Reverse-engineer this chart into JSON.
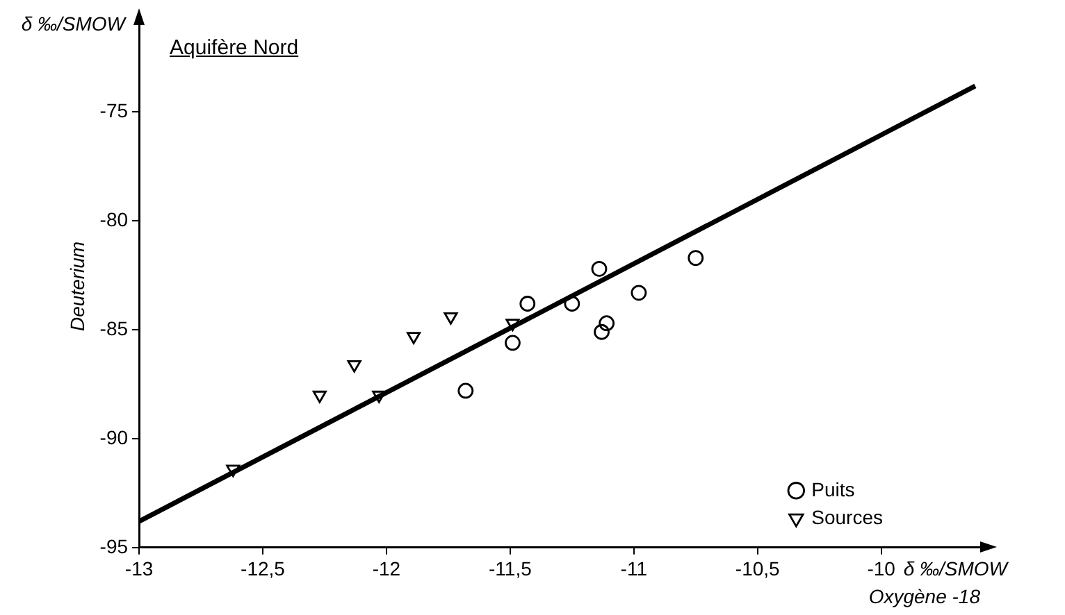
{
  "chart_data": {
    "type": "scatter",
    "title": "Aquifère Nord",
    "xlabel": "Oxygène -18",
    "ylabel": "Deuterium",
    "annotations": [
      "δ ‰/SMOW",
      "δ ‰/SMOW"
    ],
    "xlim": [
      -13,
      -9.6
    ],
    "xticks": [
      -13,
      {
        "value": -12.5,
        "label": "-12,5"
      },
      -12,
      {
        "value": -11.5,
        "label": "-11,5"
      },
      -11,
      {
        "value": -10.5,
        "label": "-10,5"
      },
      -10
    ],
    "ylim": [
      -95,
      -71
    ],
    "yticks": [
      -95,
      -90,
      -85,
      -80,
      -75
    ],
    "grid": false,
    "legend": "bottom right",
    "series": [
      {
        "name": "Puits",
        "marker": "circle",
        "color": "#000000",
        "x": [
          -11.68,
          -11.49,
          -11.43,
          -11.25,
          -11.14,
          -11.11,
          -11.13,
          -10.98,
          -10.75
        ],
        "values": [
          -87.8,
          -85.6,
          -83.8,
          -83.8,
          -82.2,
          -84.7,
          -85.1,
          -83.3,
          -81.7
        ]
      },
      {
        "name": "Sources",
        "marker": "triangle",
        "color": "#000000",
        "x": [
          -12.62,
          -12.27,
          -12.03,
          -12.13,
          -11.89,
          -11.74,
          -11.49
        ],
        "values": [
          -91.4,
          -88,
          -88,
          -86.6,
          -85.3,
          -84.4,
          -84.7
        ]
      },
      {
        "type": "line",
        "color": "#000000",
        "marker": "none",
        "x": [
          -13,
          -9.62
        ],
        "values": [
          -93.8,
          -73.8
        ]
      }
    ]
  }
}
